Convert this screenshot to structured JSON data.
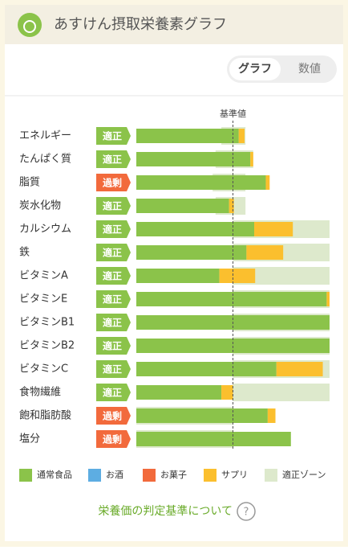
{
  "header": {
    "title": "あすけん摂取栄養素グラフ"
  },
  "toggle": {
    "options": [
      "グラフ",
      "数値"
    ],
    "selected": 0
  },
  "chart_data": {
    "type": "stacked-bar-horizontal",
    "xlim": [
      0,
      200
    ],
    "reference": {
      "value": 100,
      "label": "基準値"
    },
    "categories": [
      "エネルギー",
      "たんぱく質",
      "脂質",
      "炭水化物",
      "カルシウム",
      "鉄",
      "ビタミンA",
      "ビタミンE",
      "ビタミンB1",
      "ビタミンB2",
      "ビタミンC",
      "食物繊維",
      "飽和脂肪酸",
      "塩分"
    ],
    "status": [
      "適正",
      "適正",
      "過剰",
      "適正",
      "適正",
      "適正",
      "適正",
      "適正",
      "適正",
      "適正",
      "適正",
      "適正",
      "過剰",
      "過剰"
    ],
    "status_colors": {
      "適正": "#8bc34a",
      "過剰": "#f26a3c"
    },
    "series": [
      {
        "name": "通常食品",
        "color": "#8bc34a",
        "values": [
          106,
          118,
          134,
          96,
          122,
          114,
          86,
          197,
          200,
          200,
          145,
          88,
          136,
          160
        ]
      },
      {
        "name": "お酒",
        "color": "#5dade2",
        "values": [
          0,
          0,
          0,
          0,
          0,
          0,
          0,
          0,
          0,
          0,
          0,
          0,
          0,
          0
        ]
      },
      {
        "name": "お菓子",
        "color": "#f26a3c",
        "values": [
          0,
          0,
          0,
          0,
          0,
          0,
          0,
          0,
          0,
          0,
          0,
          0,
          0,
          0
        ]
      },
      {
        "name": "サプリ",
        "color": "#fbbf2e",
        "values": [
          6,
          3,
          4,
          5,
          40,
          38,
          37,
          3,
          0,
          0,
          48,
          12,
          8,
          0
        ]
      }
    ],
    "zone": {
      "name": "適正ゾーン",
      "color": "#dde9cc"
    },
    "zones": [
      [
        88,
        113
      ],
      [
        82,
        121
      ],
      [
        79,
        113
      ],
      [
        82,
        113
      ],
      [
        100,
        200
      ],
      [
        100,
        200
      ],
      [
        100,
        200
      ],
      [
        100,
        200
      ],
      [
        100,
        200
      ],
      [
        100,
        200
      ],
      [
        100,
        200
      ],
      [
        100,
        200
      ],
      [
        0,
        100
      ],
      [
        0,
        100
      ]
    ]
  },
  "footer": {
    "link": "栄養価の判定基準について",
    "help": "?"
  }
}
